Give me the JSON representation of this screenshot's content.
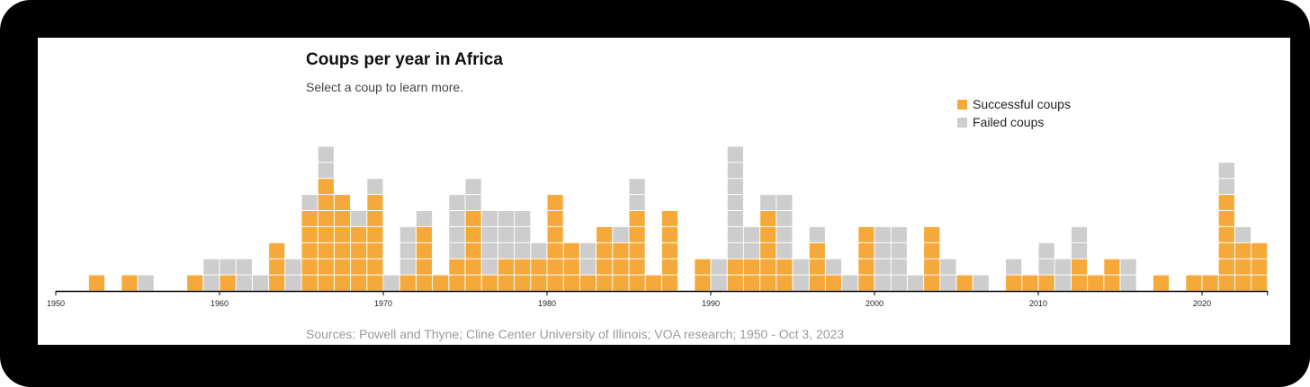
{
  "title": "Coups per year in Africa",
  "subtitle": "Select a coup to learn more.",
  "source": "Sources: Powell and Thyne; Cline Center University of Illinois; VOA research; 1950 - Oct 3, 2023",
  "legend": {
    "successful_label": "Successful coups",
    "failed_label": "Failed coups"
  },
  "colors": {
    "successful": "#F4A93A",
    "failed": "#CDCDCD"
  },
  "chart_data": {
    "type": "bar",
    "stacked": true,
    "title": "Coups per year in Africa",
    "xlim": [
      1950,
      2023
    ],
    "x_ticks": [
      1950,
      1960,
      1970,
      1980,
      1990,
      2000,
      2010,
      2020
    ],
    "legend_position": "top-right",
    "grid": false,
    "x": [
      1950,
      1951,
      1952,
      1953,
      1954,
      1955,
      1956,
      1957,
      1958,
      1959,
      1960,
      1961,
      1962,
      1963,
      1964,
      1965,
      1966,
      1967,
      1968,
      1969,
      1970,
      1971,
      1972,
      1973,
      1974,
      1975,
      1976,
      1977,
      1978,
      1979,
      1980,
      1981,
      1982,
      1983,
      1984,
      1985,
      1986,
      1987,
      1988,
      1989,
      1990,
      1991,
      1992,
      1993,
      1994,
      1995,
      1996,
      1997,
      1998,
      1999,
      2000,
      2001,
      2002,
      2003,
      2004,
      2005,
      2006,
      2007,
      2008,
      2009,
      2010,
      2011,
      2012,
      2013,
      2014,
      2015,
      2016,
      2017,
      2018,
      2019,
      2020,
      2021,
      2022,
      2023
    ],
    "series": [
      {
        "name": "Successful coups",
        "values": [
          0,
          0,
          1,
          0,
          1,
          0,
          0,
          0,
          1,
          0,
          1,
          0,
          0,
          3,
          0,
          5,
          7,
          6,
          4,
          6,
          0,
          1,
          4,
          1,
          2,
          5,
          1,
          2,
          2,
          2,
          6,
          3,
          1,
          4,
          3,
          5,
          1,
          5,
          0,
          2,
          0,
          2,
          2,
          5,
          2,
          0,
          3,
          1,
          0,
          4,
          0,
          0,
          0,
          4,
          0,
          1,
          0,
          0,
          1,
          1,
          1,
          0,
          2,
          1,
          2,
          0,
          0,
          1,
          0,
          1,
          1,
          6,
          3,
          3
        ]
      },
      {
        "name": "Failed coups",
        "values": [
          0,
          0,
          0,
          0,
          0,
          1,
          0,
          0,
          0,
          2,
          1,
          2,
          1,
          0,
          2,
          1,
          2,
          0,
          1,
          1,
          1,
          3,
          1,
          0,
          4,
          2,
          4,
          3,
          3,
          1,
          0,
          0,
          2,
          0,
          1,
          2,
          0,
          0,
          0,
          0,
          2,
          7,
          2,
          1,
          4,
          2,
          1,
          1,
          1,
          0,
          4,
          4,
          1,
          0,
          2,
          0,
          1,
          0,
          1,
          0,
          2,
          2,
          2,
          0,
          0,
          2,
          0,
          0,
          0,
          0,
          0,
          2,
          1,
          0
        ]
      }
    ]
  }
}
